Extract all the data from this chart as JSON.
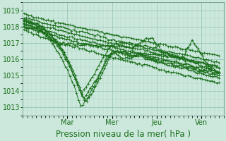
{
  "bg_color": "#cce8dc",
  "line_color": "#1a6e1a",
  "marker": "+",
  "markersize": 2.5,
  "linewidth": 0.7,
  "xlabel": "Pression niveau de la mer( hPa )",
  "xlabel_fontsize": 8.5,
  "ylim": [
    1012.5,
    1019.5
  ],
  "yticks": [
    1013,
    1014,
    1015,
    1016,
    1017,
    1018,
    1019
  ],
  "grid_color_major": "#8fbfaf",
  "grid_color_minor": "#aad4c4",
  "tick_fontsize": 7,
  "day_labels": [
    "Mar",
    "Mer",
    "Jeu",
    "Ven"
  ],
  "day_positions": [
    1.0,
    2.0,
    3.0,
    4.0
  ],
  "xlim": [
    0.0,
    4.5
  ]
}
